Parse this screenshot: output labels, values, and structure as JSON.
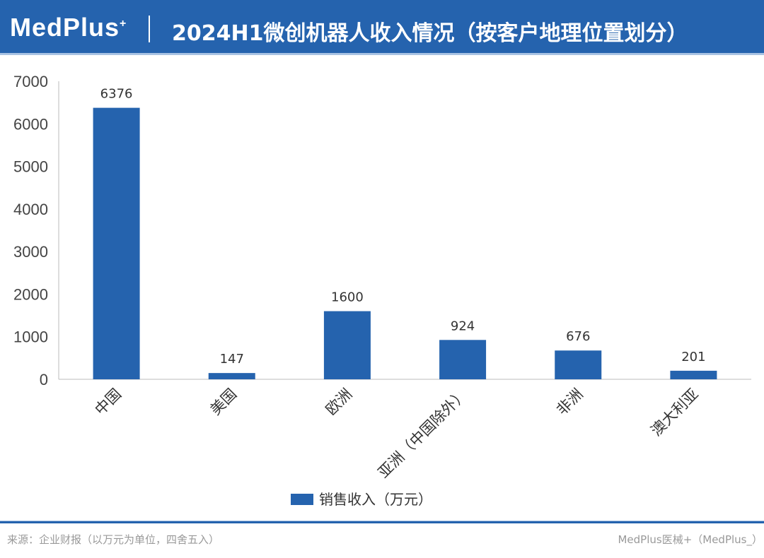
{
  "header": {
    "logo": "MedPlus",
    "logo_mark": "+",
    "title": "2024H1微创机器人收入情况（按客户地理位置划分）"
  },
  "footer": {
    "source": "来源：企业财报（以万元为单位，四舍五入）",
    "credit": "MedPlus医械+（MedPlus_）"
  },
  "colors": {
    "bar": "#2563ae",
    "header": "#2563ae"
  },
  "chart_data": {
    "type": "bar",
    "title": "2024H1微创机器人收入情况（按客户地理位置划分）",
    "categories": [
      "中国",
      "美国",
      "欧洲",
      "亚洲（中国除外）",
      "非洲",
      "澳大利亚"
    ],
    "series": [
      {
        "name": "销售收入（万元）",
        "values": [
          6376,
          147,
          1600,
          924,
          676,
          201
        ]
      }
    ],
    "ylim": [
      0,
      7000
    ],
    "yticks": [
      0,
      1000,
      2000,
      3000,
      4000,
      5000,
      6000,
      7000
    ],
    "xlabel": "",
    "ylabel": "",
    "grid": false,
    "legend": "bottom"
  }
}
